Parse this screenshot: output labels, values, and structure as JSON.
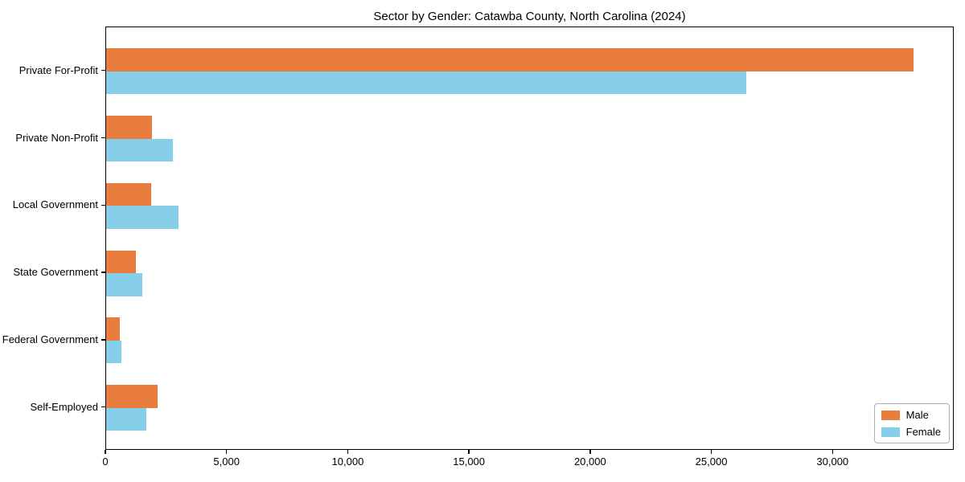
{
  "title": "Sector by Gender: Catawba County, North Carolina (2024)",
  "chart_data": {
    "type": "bar",
    "orientation": "horizontal",
    "title": "Sector by Gender: Catawba County, North Carolina (2024)",
    "categories": [
      "Private For-Profit",
      "Private Non-Profit",
      "Local Government",
      "State Government",
      "Federal Government",
      "Self-Employed"
    ],
    "series": [
      {
        "name": "Male",
        "color": "#e87d3d",
        "values": [
          33300,
          1900,
          1850,
          1220,
          570,
          2120
        ]
      },
      {
        "name": "Female",
        "color": "#87ceeb",
        "values": [
          26400,
          2760,
          2990,
          1480,
          620,
          1660
        ]
      }
    ],
    "xlabel": "",
    "ylabel": "",
    "xlim": [
      0,
      35000
    ],
    "xticks": {
      "values": [
        0,
        5000,
        10000,
        15000,
        20000,
        25000,
        30000
      ],
      "labels": [
        "0",
        "5,000",
        "10,000",
        "15,000",
        "20,000",
        "25,000",
        "30,000"
      ]
    },
    "grid": false,
    "legend_position": "lower right",
    "colors": {
      "spine": "#000000",
      "background": "#ffffff",
      "text": "#000000",
      "legend_border": "#b0b0b0"
    }
  }
}
